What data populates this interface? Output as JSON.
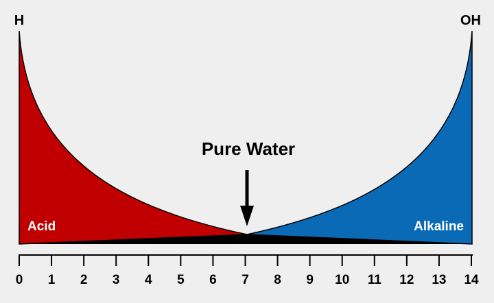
{
  "diagram": {
    "end_labels": {
      "left": "H",
      "right": "OH"
    },
    "center_label": "Pure Water",
    "regions": {
      "acid": {
        "label": "Acid",
        "color": "#c00000"
      },
      "alkaline": {
        "label": "Alkaline",
        "color": "#0a6ab5"
      }
    },
    "scale": {
      "min": 0,
      "max": 14,
      "ticks": [
        "0",
        "1",
        "2",
        "3",
        "4",
        "5",
        "6",
        "7",
        "8",
        "9",
        "10",
        "11",
        "12",
        "13",
        "14"
      ],
      "neutral_point": 7
    },
    "colors": {
      "background": "#efefef",
      "ink": "#000000",
      "label_text": "#ffffff"
    }
  }
}
